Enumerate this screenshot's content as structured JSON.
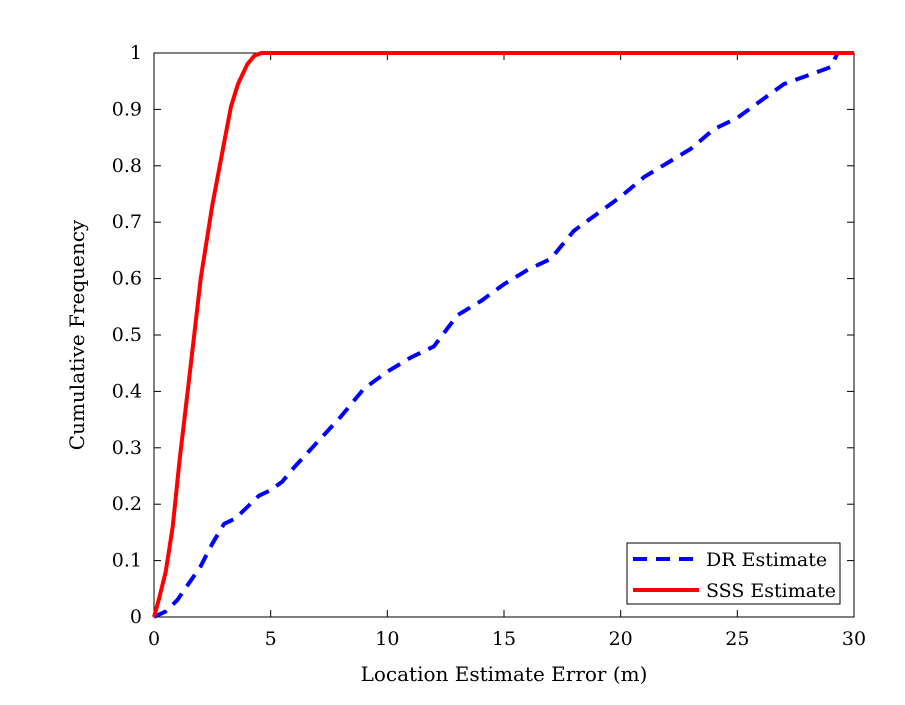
{
  "chart_data": {
    "type": "line",
    "title": "",
    "xlabel": "Location Estimate Error (m)",
    "ylabel": "Cumulative Frequency",
    "xlim": [
      0,
      30
    ],
    "ylim": [
      0,
      1
    ],
    "xticks": [
      0,
      5,
      10,
      15,
      20,
      25,
      30
    ],
    "yticks": [
      0,
      0.1,
      0.2,
      0.3,
      0.4,
      0.5,
      0.6,
      0.7,
      0.8,
      0.9,
      1
    ],
    "xtick_labels": [
      "0",
      "5",
      "10",
      "15",
      "20",
      "25",
      "30"
    ],
    "ytick_labels": [
      "0",
      "0.1",
      "0.2",
      "0.3",
      "0.4",
      "0.5",
      "0.6",
      "0.7",
      "0.8",
      "0.9",
      "1"
    ],
    "grid": false,
    "legend_position": "bottom-right",
    "series": [
      {
        "name": "DR Estimate",
        "color": "#0000ff",
        "style": "dashed",
        "x": [
          0,
          0.5,
          1,
          1.5,
          2,
          2.5,
          3,
          3.5,
          4,
          4.5,
          5,
          5.5,
          6,
          7,
          8,
          9,
          10,
          11,
          12,
          13,
          14,
          15,
          16,
          17,
          17.5,
          18,
          19,
          20,
          21,
          22,
          23,
          24,
          25,
          26,
          27,
          28,
          29,
          29.3
        ],
        "y": [
          0,
          0.01,
          0.03,
          0.06,
          0.09,
          0.13,
          0.165,
          0.175,
          0.195,
          0.215,
          0.225,
          0.24,
          0.265,
          0.31,
          0.355,
          0.405,
          0.435,
          0.46,
          0.48,
          0.535,
          0.56,
          0.59,
          0.615,
          0.635,
          0.66,
          0.685,
          0.715,
          0.745,
          0.78,
          0.805,
          0.83,
          0.865,
          0.885,
          0.915,
          0.945,
          0.96,
          0.975,
          1.0
        ]
      },
      {
        "name": "SSS Estimate",
        "color": "#ff0000",
        "style": "solid",
        "x": [
          0,
          0.2,
          0.5,
          0.8,
          1.1,
          1.5,
          2,
          2.5,
          3,
          3.3,
          3.6,
          4,
          4.3,
          4.6,
          5,
          30
        ],
        "y": [
          0,
          0.03,
          0.08,
          0.16,
          0.28,
          0.42,
          0.6,
          0.73,
          0.84,
          0.905,
          0.945,
          0.98,
          0.995,
          1.0,
          1.0,
          1.0
        ]
      }
    ]
  }
}
